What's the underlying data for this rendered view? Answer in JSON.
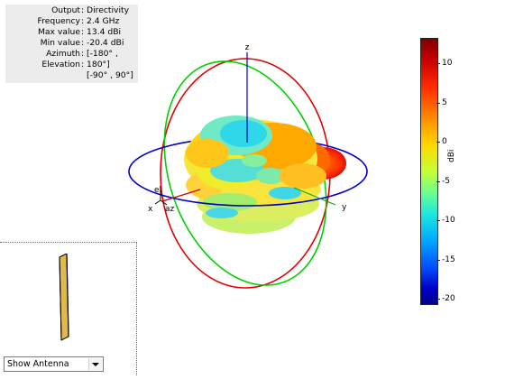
{
  "info_panel": {
    "rows": [
      {
        "key": "Output",
        "value": "Directivity"
      },
      {
        "key": "Frequency",
        "value": "2.4 GHz"
      },
      {
        "key": "Max value",
        "value": "13.4 dBi"
      },
      {
        "key": "Min value",
        "value": "-20.4 dBi"
      },
      {
        "key": "Azimuth",
        "value": "[-180° ,"
      },
      {
        "key": "Elevation",
        "value": "180°]"
      },
      {
        "key": "",
        "value": "[-90° , 90°]"
      }
    ]
  },
  "axes": {
    "z": "z",
    "y": "y",
    "x": "x",
    "el": "el",
    "az": "az"
  },
  "colorbar": {
    "unit": "dBi",
    "ticks": [
      "10",
      "5",
      "0",
      "-5",
      "-10",
      "-15",
      "-20"
    ],
    "min": -20.4,
    "max": 13.4,
    "colors": {
      "high": "#7f0000",
      "mid": "#c6ff34",
      "low": "#00008c"
    }
  },
  "antenna_view": {
    "selector_label": "Show Antenna"
  },
  "colors": {
    "azimuth_circle": "#0000c8",
    "elevation_red": "#e00000",
    "elevation_green": "#00d000",
    "antenna_fill": "#e0b84c"
  }
}
